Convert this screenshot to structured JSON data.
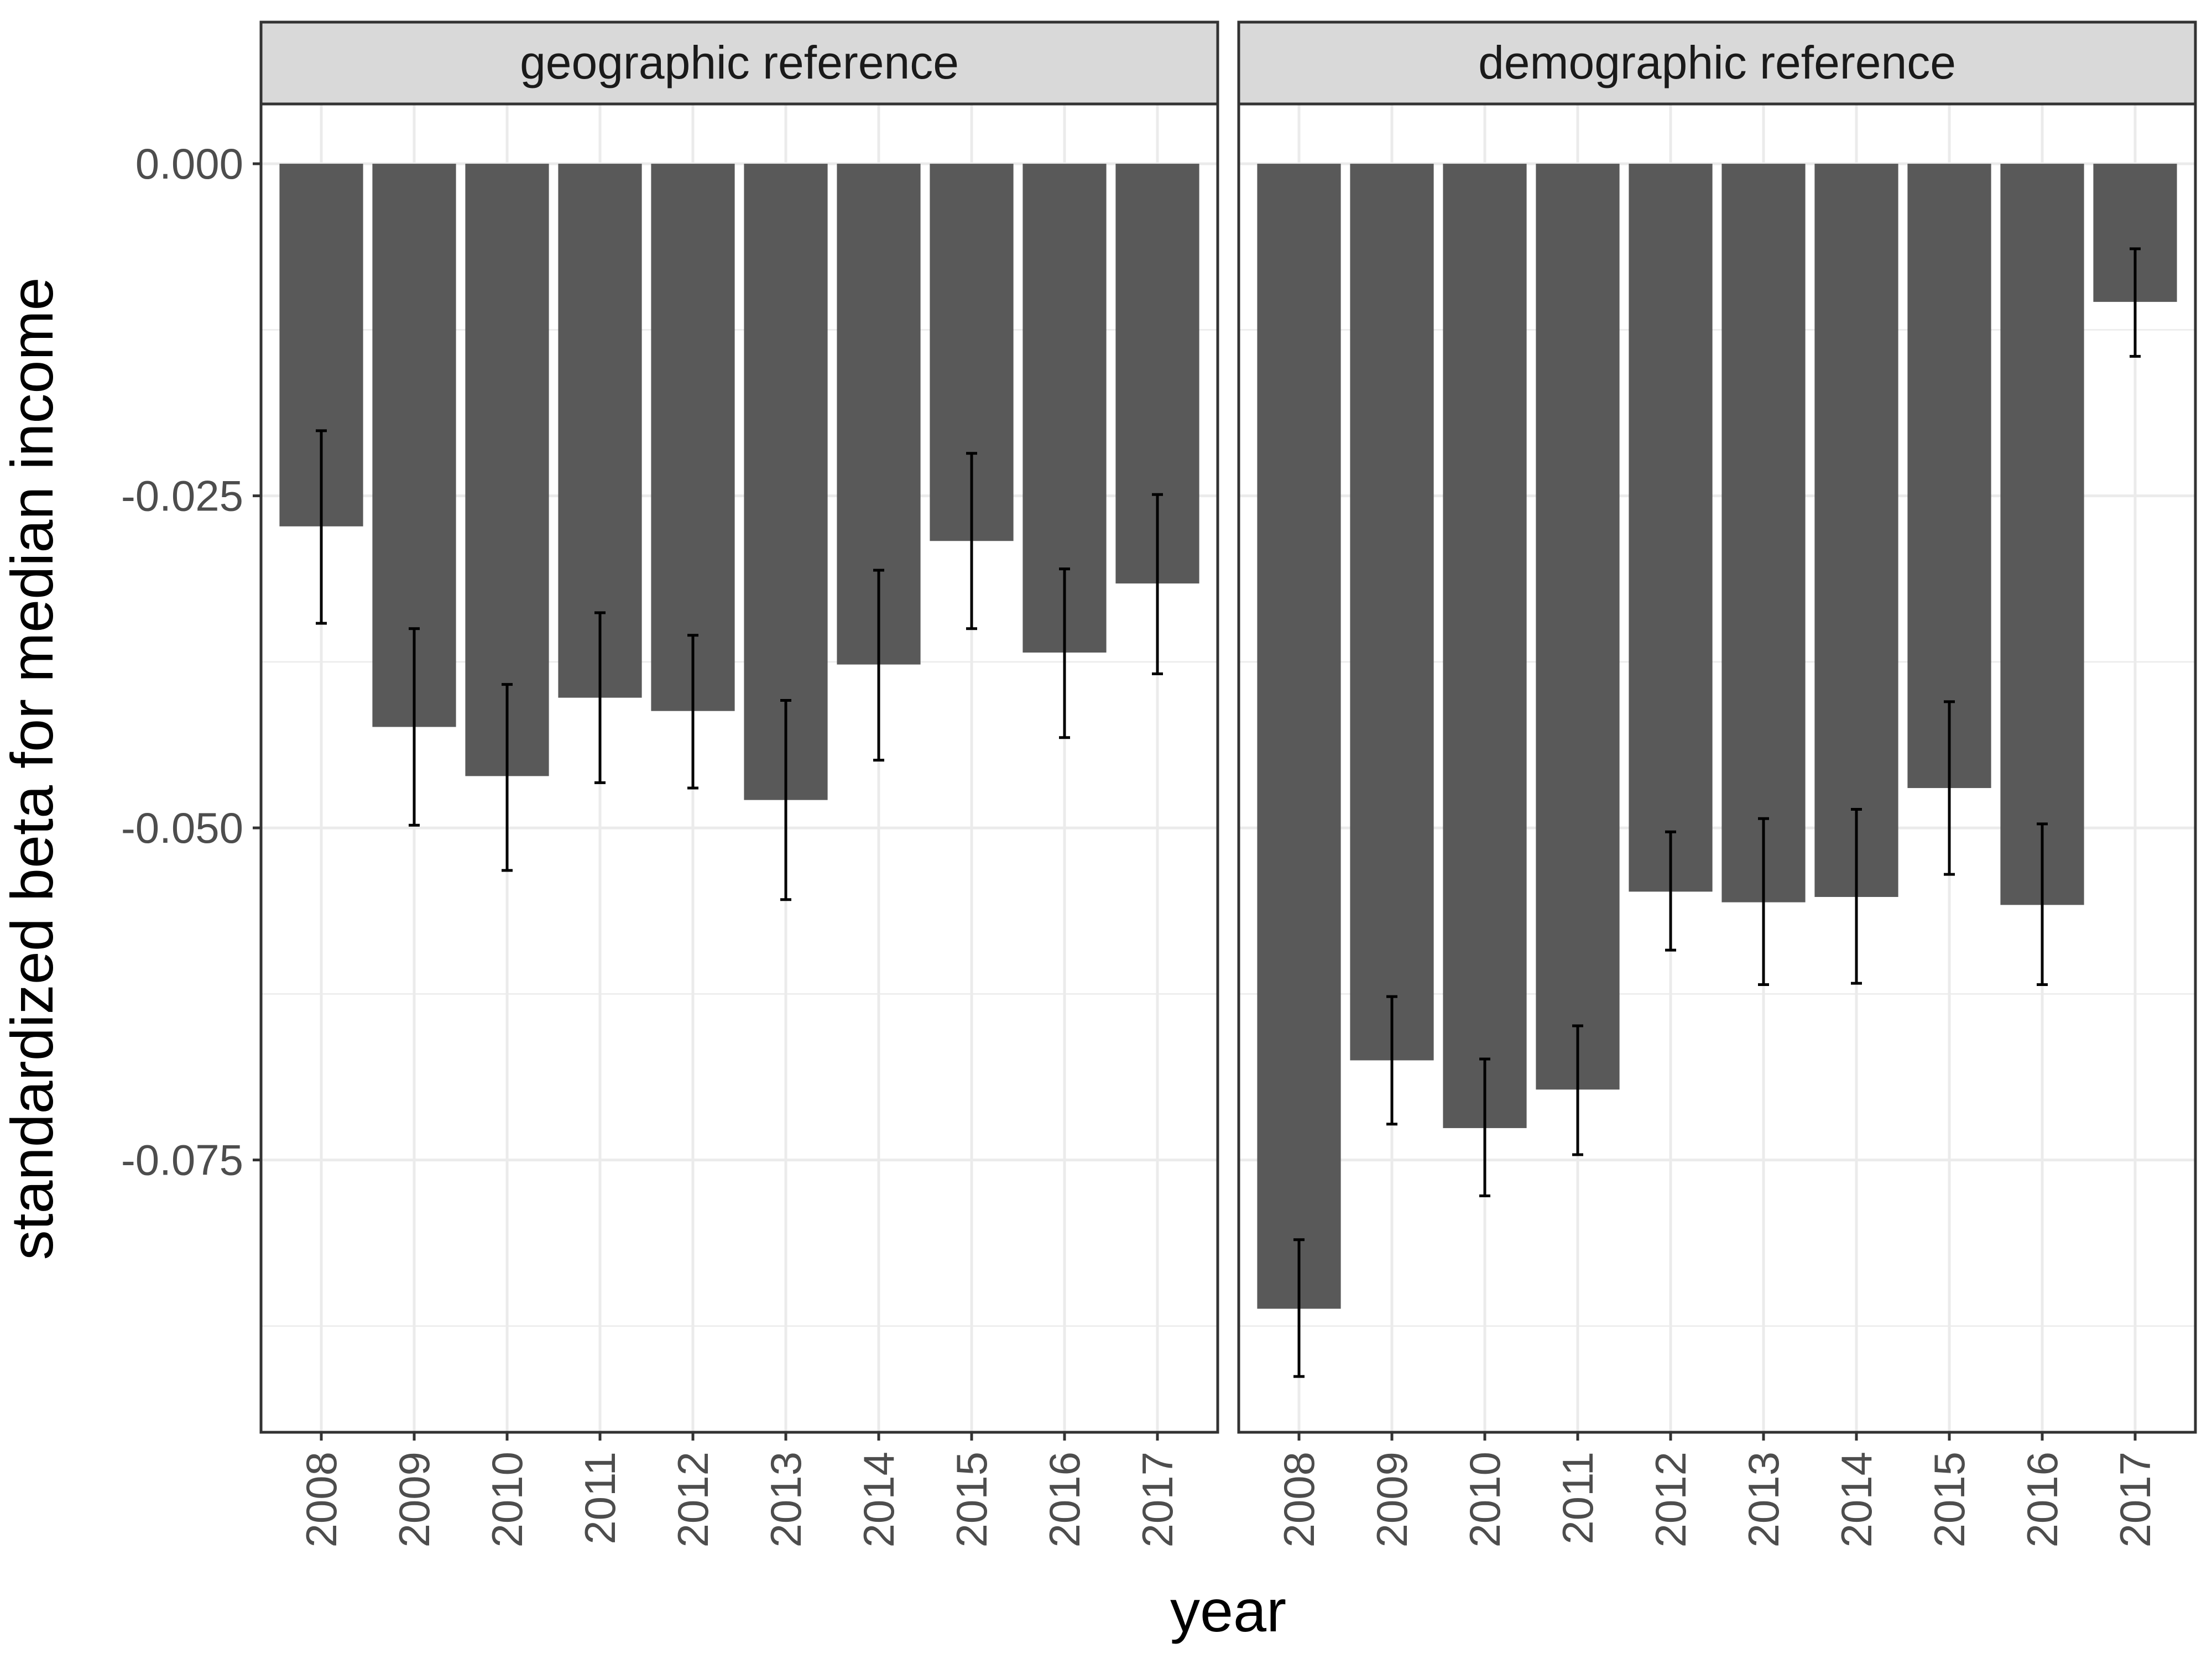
{
  "chart_data": {
    "type": "bar",
    "xlabel": "year",
    "ylabel": "standardized beta for median income",
    "ylim": [
      -0.0955,
      0.0045
    ],
    "y_ticks": [
      0.0,
      -0.025,
      -0.05,
      -0.075
    ],
    "y_tick_labels": [
      "0.000",
      "-0.025",
      "-0.050",
      "-0.075"
    ],
    "grid": true,
    "error_bars": true,
    "colors": {
      "bar": "#595959",
      "error_bar": "#000000",
      "strip_bg": "#d9d9d9",
      "grid": "#ebebeb",
      "panel_border": "#333333"
    },
    "categories": [
      "2008",
      "2009",
      "2010",
      "2011",
      "2012",
      "2013",
      "2014",
      "2015",
      "2016",
      "2017"
    ],
    "panels": [
      {
        "name": "geographic reference",
        "values": [
          -0.0273,
          -0.0424,
          -0.0461,
          -0.0402,
          -0.0412,
          -0.0479,
          -0.0377,
          -0.0284,
          -0.0368,
          -0.0316
        ],
        "err_low": [
          -0.0346,
          -0.0498,
          -0.0532,
          -0.0466,
          -0.047,
          -0.0554,
          -0.0449,
          -0.035,
          -0.0432,
          -0.0384
        ],
        "err_high": [
          -0.0201,
          -0.035,
          -0.0392,
          -0.0338,
          -0.0355,
          -0.0404,
          -0.0306,
          -0.0218,
          -0.0305,
          -0.0249
        ]
      },
      {
        "name": "demographic reference",
        "values": [
          -0.0862,
          -0.0675,
          -0.0726,
          -0.0697,
          -0.0548,
          -0.0556,
          -0.0552,
          -0.047,
          -0.0558,
          -0.0104
        ],
        "err_low": [
          -0.0913,
          -0.0723,
          -0.0777,
          -0.0746,
          -0.0592,
          -0.0618,
          -0.0617,
          -0.0535,
          -0.0618,
          -0.0145
        ],
        "err_high": [
          -0.081,
          -0.0627,
          -0.0674,
          -0.0649,
          -0.0503,
          -0.0493,
          -0.0486,
          -0.0405,
          -0.0497,
          -0.0064
        ]
      }
    ]
  }
}
